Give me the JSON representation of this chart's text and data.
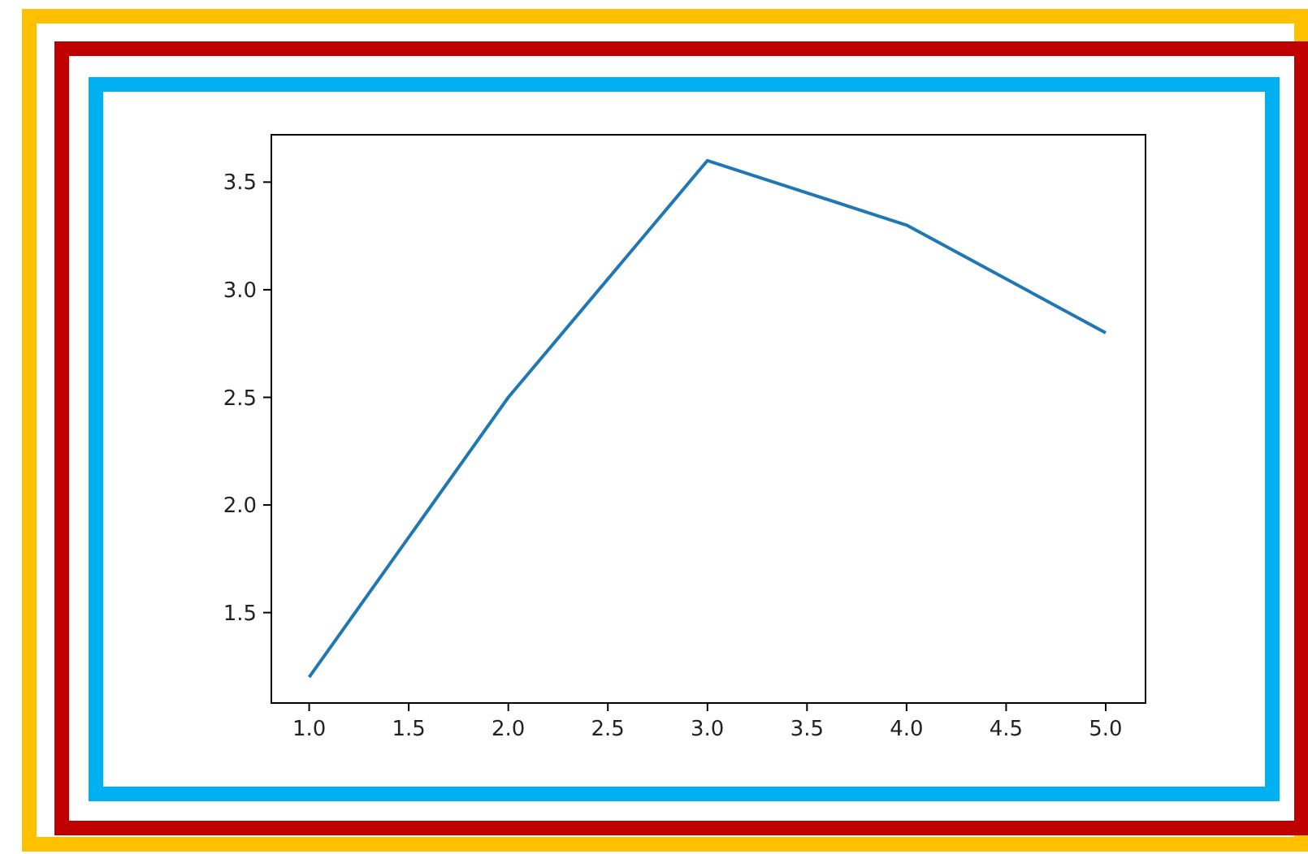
{
  "chart_data": {
    "type": "line",
    "x": [
      1,
      2,
      3,
      4,
      5
    ],
    "series": [
      {
        "color": "#1f77b4",
        "values": [
          1.2,
          2.5,
          3.6,
          3.3,
          2.8
        ]
      }
    ],
    "xlim": [
      0.81,
      5.2
    ],
    "ylim": [
      1.08,
      3.72
    ],
    "xticks": [
      {
        "value": 1,
        "label": "1.0"
      },
      1.5,
      {
        "value": 2,
        "label": "2.0"
      },
      2.5,
      {
        "value": 3,
        "label": "3.0"
      },
      3.5,
      {
        "value": 4,
        "label": "4.0"
      },
      4.5,
      {
        "value": 5,
        "label": "5.0"
      }
    ],
    "yticks": [
      1.5,
      {
        "value": 2,
        "label": "2.0"
      },
      2.5,
      {
        "value": 3,
        "label": "3.0"
      },
      3.5
    ],
    "grid": false,
    "marker": "none",
    "line_style": "solid"
  }
}
